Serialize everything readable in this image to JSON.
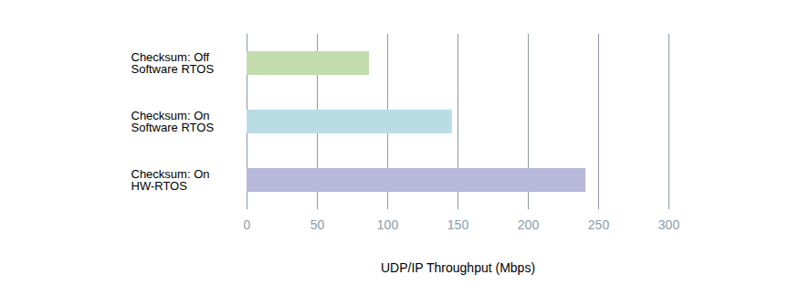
{
  "chart_data": {
    "type": "bar",
    "orientation": "horizontal",
    "categories": [
      "Checksum: Off\nSoftware RTOS",
      "Checksum: On\nSoftware RTOS",
      "Checksum: On\nHW-RTOS"
    ],
    "values": [
      87,
      146,
      241
    ],
    "colors": [
      "#c2dcae",
      "#b9dde5",
      "#b8b8da"
    ],
    "xlabel": "UDP/IP Throughput (Mbps)",
    "xlim": [
      0,
      300
    ],
    "xticks": [
      0,
      50,
      100,
      150,
      200,
      250,
      300
    ],
    "grid": true
  }
}
